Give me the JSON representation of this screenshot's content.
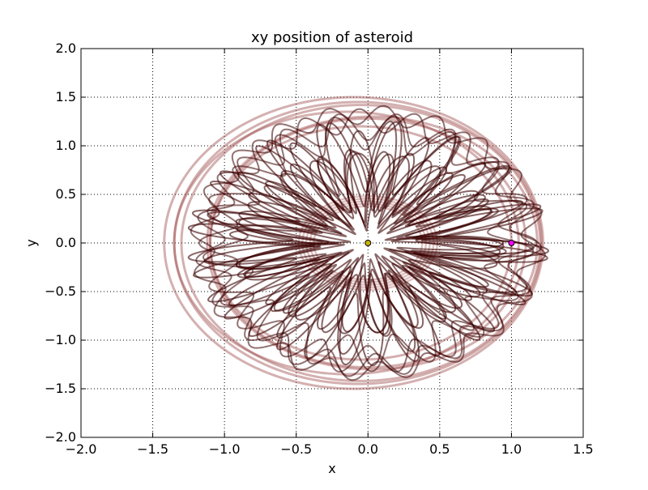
{
  "chart_data": {
    "type": "line",
    "title": "xy position of asteroid",
    "xlabel": "x",
    "ylabel": "y",
    "xlim": [
      -2.0,
      1.5
    ],
    "ylim": [
      -2.0,
      2.0
    ],
    "x_ticks": [
      -2.0,
      -1.5,
      -1.0,
      -0.5,
      0.0,
      0.5,
      1.0,
      1.5
    ],
    "y_ticks": [
      -2.0,
      -1.5,
      -1.0,
      -0.5,
      0.0,
      0.5,
      1.0,
      1.5,
      2.0
    ],
    "x_tick_labels": [
      "−2.0",
      "−1.5",
      "−1.0",
      "−0.5",
      "0.0",
      "0.5",
      "1.0",
      "1.5"
    ],
    "y_tick_labels": [
      "−2.0",
      "−1.5",
      "−1.0",
      "−0.5",
      "0.0",
      "0.5",
      "1.0",
      "1.5",
      "2.0"
    ],
    "grid": true,
    "series": [
      {
        "name": "asteroid trajectory",
        "kind": "spirograph-orbit",
        "color": "#3a0000",
        "halo_color": "#a05050",
        "approx_inner_radius_x": 0.35,
        "approx_inner_radius_y": 0.35,
        "approx_outer_radius_x": 1.35,
        "approx_outer_radius_y": 1.5
      }
    ],
    "markers": [
      {
        "name": "sun",
        "x": 0.0,
        "y": 0.0,
        "color": "#c8b400",
        "edge": "#000000"
      },
      {
        "name": "planet",
        "x": 1.0,
        "y": 0.0,
        "color": "#ff00ff",
        "edge": "#000000"
      }
    ]
  }
}
